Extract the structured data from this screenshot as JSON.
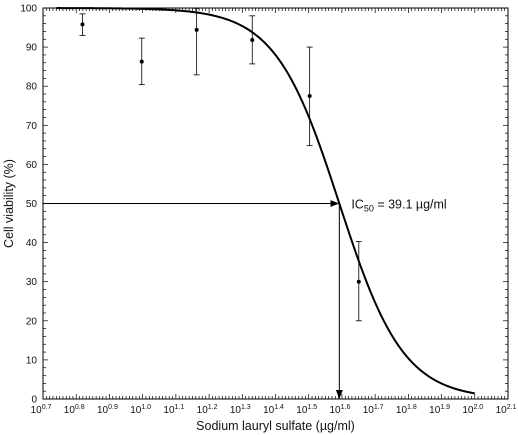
{
  "chart_data": {
    "type": "scatter",
    "xlabel": "Sodium lauryl sulfate (µg/ml)",
    "ylabel": "Cell viability (%)",
    "x_scale": "log10",
    "xlim": [
      5.0119,
      125.89
    ],
    "ylim": [
      0,
      100
    ],
    "x_tick_labels": [
      "10",
      "10",
      "10",
      "10",
      "10",
      "10",
      "10",
      "10",
      "10",
      "10",
      "10",
      "10",
      "10",
      "10",
      "10"
    ],
    "x_tick_exponents": [
      "0.7",
      "0.8",
      "0.9",
      "1.0",
      "1.1",
      "1.2",
      "1.3",
      "1.4",
      "1.5",
      "1.6",
      "1.7",
      "1.8",
      "1.9",
      "2.0",
      "2.1"
    ],
    "y_ticks": [
      "0",
      "10",
      "20",
      "30",
      "40",
      "50",
      "60",
      "70",
      "80",
      "90",
      "100"
    ],
    "points": [
      {
        "x": 6.59,
        "y": 95.8,
        "err_low": 93.0,
        "err_high": 98.5
      },
      {
        "x": 9.94,
        "y": 86.3,
        "err_low": 80.4,
        "err_high": 92.3
      },
      {
        "x": 14.54,
        "y": 94.4,
        "err_low": 82.9,
        "err_high": 99.9
      },
      {
        "x": 21.38,
        "y": 91.8,
        "err_low": 85.7,
        "err_high": 98.0
      },
      {
        "x": 31.83,
        "y": 77.5,
        "err_low": 64.8,
        "err_high": 90.0
      },
      {
        "x": 44.75,
        "y": 30.0,
        "err_low": 20.0,
        "err_high": 40.3
      }
    ],
    "fit_curve": {
      "top": 100,
      "bottom": 0,
      "ic50": 39.1,
      "hill": 4.5
    },
    "annotation": {
      "prefix": "IC",
      "subscript": "50",
      "suffix": " = 39.1 µg/ml"
    },
    "grid": false,
    "legend": "none"
  }
}
